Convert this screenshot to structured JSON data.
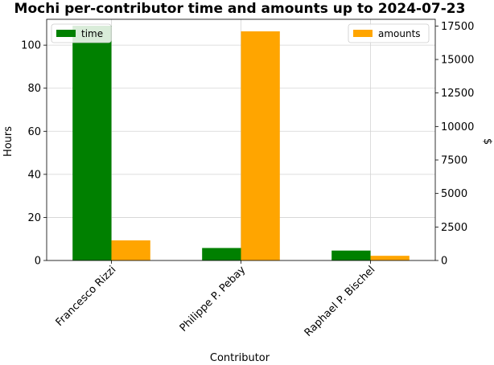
{
  "chart_data": {
    "type": "bar",
    "title": "Mochi per-contributor time and amounts up to 2024-07-23",
    "xlabel": "Contributor",
    "ylabel_left": "Hours",
    "ylabel_right": "$",
    "categories": [
      "Francesco Rizzi",
      "Philippe P. Pebay",
      "Raphael P. Bischel"
    ],
    "series": [
      {
        "name": "time",
        "axis": "left",
        "color": "#008000",
        "values": [
          109,
          5.8,
          4.6
        ]
      },
      {
        "name": "amounts",
        "axis": "right",
        "color": "#ffa500",
        "values": [
          1500,
          17100,
          350
        ]
      }
    ],
    "ylim_left": [
      0,
      112
    ],
    "ylim_right": [
      0,
      18000
    ],
    "yticks_left": [
      "0",
      "20",
      "40",
      "60",
      "80",
      "100"
    ],
    "yticks_right": [
      "0",
      "2500",
      "5000",
      "7500",
      "10000",
      "12500",
      "15000",
      "17500"
    ],
    "grid": true,
    "legend_left": "top-left",
    "legend_right": "top-right"
  }
}
